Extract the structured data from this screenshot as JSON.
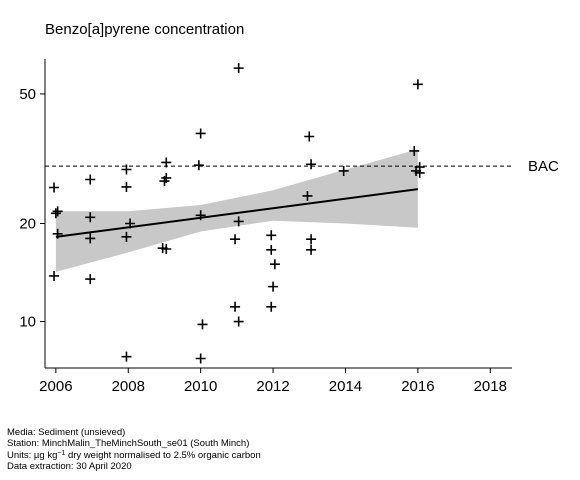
{
  "chart_data": {
    "type": "scatter",
    "title": "Benzo[a]pyrene concentration",
    "y_scale": "log",
    "xlim": [
      2005.7,
      2018.6
    ],
    "ylim": [
      7.2,
      64
    ],
    "x_ticks": [
      2006,
      2008,
      2010,
      2012,
      2014,
      2016,
      2018
    ],
    "y_ticks": [
      10,
      20,
      50
    ],
    "reference_line": {
      "label": "BAC",
      "value": 30,
      "style": "dashed"
    },
    "points": [
      [
        2005.95,
        25.8
      ],
      [
        2006.0,
        21.5
      ],
      [
        2006.05,
        21.8
      ],
      [
        2006.05,
        18.6
      ],
      [
        2005.95,
        13.8
      ],
      [
        2006.95,
        27.3
      ],
      [
        2006.95,
        20.9
      ],
      [
        2006.95,
        18.0
      ],
      [
        2006.95,
        13.5
      ],
      [
        2007.95,
        29.3
      ],
      [
        2007.95,
        25.9
      ],
      [
        2008.05,
        20.0
      ],
      [
        2007.95,
        18.2
      ],
      [
        2007.95,
        7.8
      ],
      [
        2008.95,
        16.8
      ],
      [
        2009.05,
        16.7
      ],
      [
        2009.0,
        27.0
      ],
      [
        2009.05,
        27.6
      ],
      [
        2009.05,
        30.8
      ],
      [
        2009.95,
        30.2
      ],
      [
        2010.0,
        37.8
      ],
      [
        2010.0,
        21.2
      ],
      [
        2010.05,
        9.8
      ],
      [
        2010.0,
        7.7
      ],
      [
        2010.95,
        17.9
      ],
      [
        2010.95,
        11.1
      ],
      [
        2011.05,
        20.3
      ],
      [
        2011.05,
        10.0
      ],
      [
        2011.05,
        60.0
      ],
      [
        2011.95,
        16.6
      ],
      [
        2011.95,
        18.4
      ],
      [
        2011.95,
        11.1
      ],
      [
        2012.0,
        12.8
      ],
      [
        2012.05,
        15.0
      ],
      [
        2012.95,
        24.3
      ],
      [
        2013.0,
        37.0
      ],
      [
        2013.05,
        30.4
      ],
      [
        2013.05,
        16.6
      ],
      [
        2013.05,
        17.9
      ],
      [
        2013.95,
        29.0
      ],
      [
        2015.9,
        33.4
      ],
      [
        2015.95,
        29.0
      ],
      [
        2016.0,
        53.5
      ],
      [
        2016.05,
        29.8
      ],
      [
        2016.05,
        28.6
      ]
    ],
    "trend_line": {
      "x": [
        2006,
        2016
      ],
      "y": [
        18.2,
        25.5
      ]
    },
    "confidence_band": {
      "x": [
        2006,
        2008,
        2010,
        2012,
        2014,
        2016
      ],
      "lower": [
        14.2,
        16.3,
        18.9,
        20.4,
        20.0,
        19.4
      ],
      "upper": [
        21.8,
        21.8,
        22.8,
        25.3,
        29.3,
        33.8
      ]
    },
    "colors": {
      "points": "#000000",
      "trend": "#000000",
      "band": "#c8c8c8",
      "axis": "#000000"
    }
  },
  "footer": {
    "media": "Media: Sediment (unsieved)",
    "station": "Station: MinchMalin_TheMinchSouth_se01 (South Minch)",
    "units_prefix": "Units: µg kg",
    "units_sup": "−1",
    "units_suffix": " dry weight normalised to 2.5% organic carbon",
    "extraction": "Data extraction: 30 April 2020"
  }
}
